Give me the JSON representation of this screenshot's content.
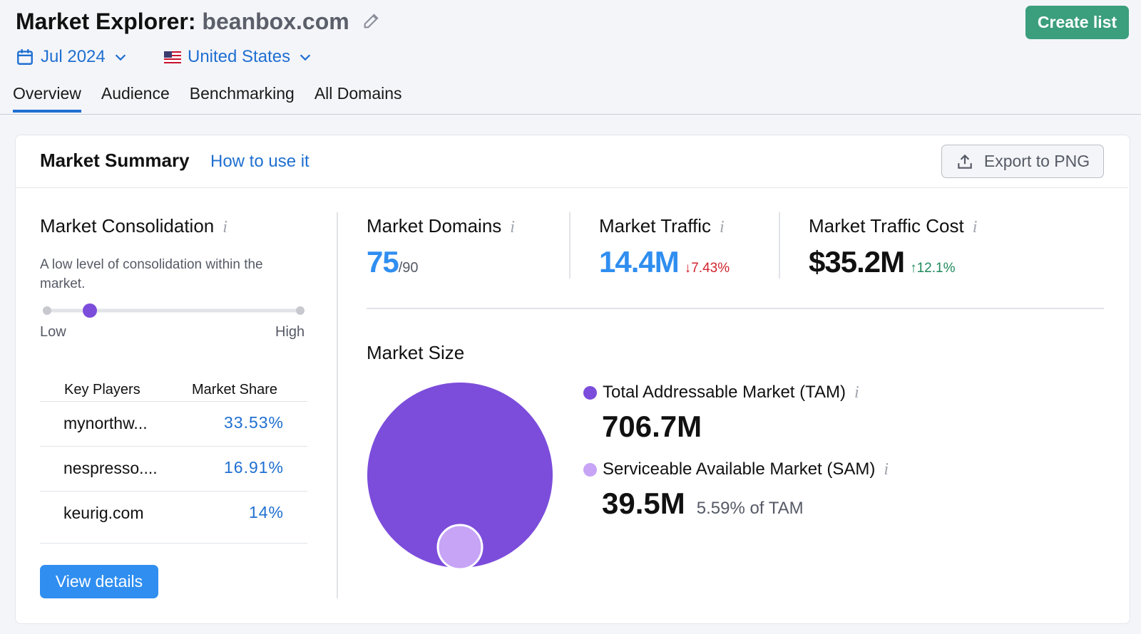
{
  "header": {
    "title": "Market Explorer:",
    "domain": "beanbox.com",
    "create_button": "Create list",
    "date": "Jul 2024",
    "country": "United States"
  },
  "tabs": {
    "items": [
      "Overview",
      "Audience",
      "Benchmarking",
      "All Domains"
    ],
    "active": 0
  },
  "summary": {
    "title": "Market Summary",
    "help_link": "How to use it",
    "export_button": "Export to PNG"
  },
  "consolidation": {
    "title": "Market Consolidation",
    "description": "A low level of consolidation within the market.",
    "scale_low": "Low",
    "scale_high": "High"
  },
  "key_players": {
    "headers": [
      "Key Players",
      "Market Share"
    ],
    "rows": [
      [
        "mynorthw...",
        "33.53%"
      ],
      [
        "nespresso....",
        "16.91%"
      ],
      [
        "keurig.com",
        "14%"
      ]
    ],
    "button": "View details"
  },
  "metrics": [
    {
      "label": "Market Domains",
      "value": "75",
      "suffix": "/90"
    },
    {
      "label": "Market Traffic",
      "value": "14.4M",
      "change": "7.43%",
      "direction": "down"
    },
    {
      "label": "Market Traffic Cost",
      "value": "$35.2M",
      "change": "12.1%",
      "direction": "up"
    }
  ],
  "market_size": {
    "title": "Market Size",
    "tam": {
      "label": "Total Addressable Market (TAM)",
      "value": "706.7M"
    },
    "sam": {
      "label": "Serviceable Available Market (SAM)",
      "value": "39.5M",
      "note": "5.59% of TAM"
    }
  }
}
